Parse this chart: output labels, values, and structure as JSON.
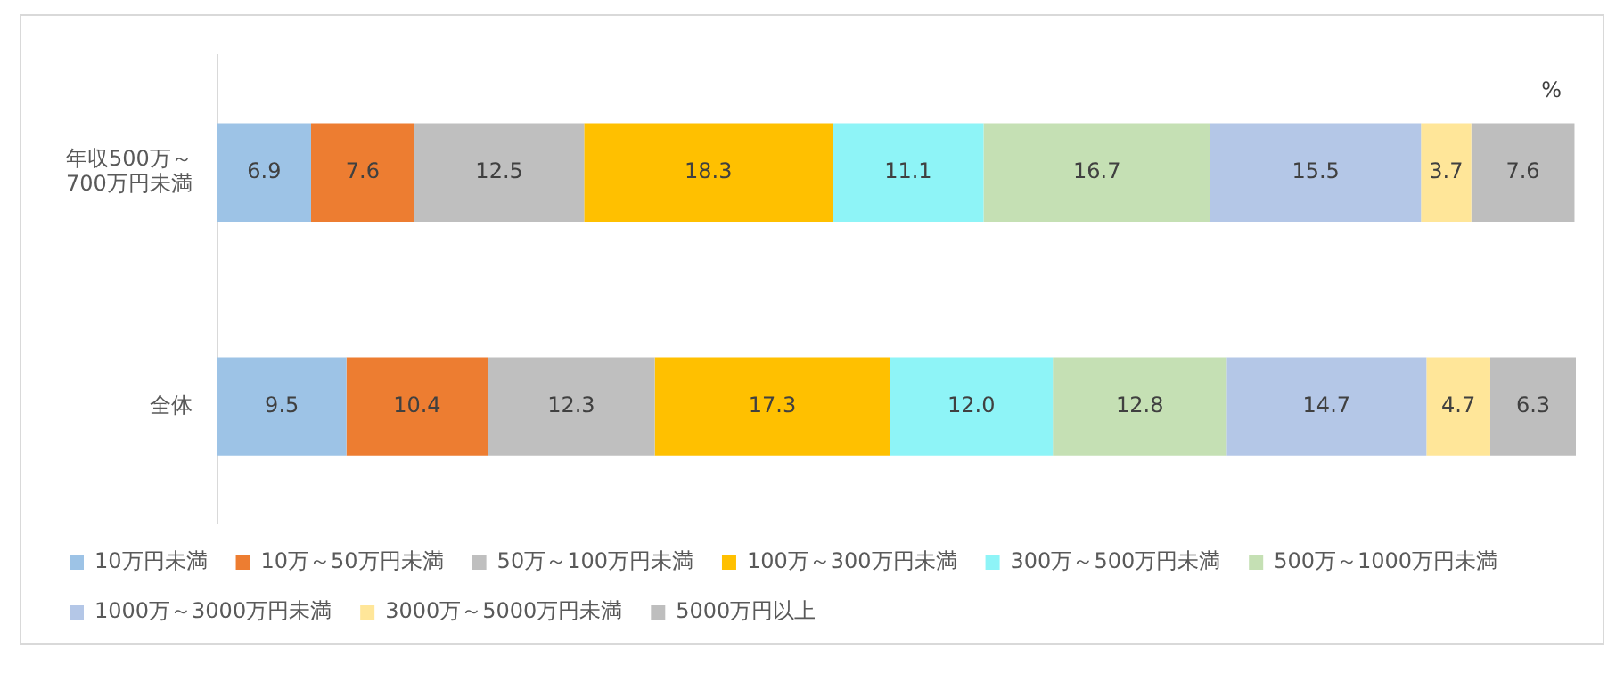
{
  "chart_data": {
    "type": "bar",
    "orientation": "horizontal",
    "stacked": true,
    "categories": [
      "年収500万～700万円未満",
      "全体"
    ],
    "xlim": [
      0,
      100
    ],
    "tick_labels": "y",
    "grid": false,
    "legend": "bottom",
    "annotations": [
      "%"
    ],
    "series": [
      {
        "name": "10万円未満",
        "color": "#9dc3e6",
        "values": [
          6.9,
          9.5
        ],
        "value_labels": [
          "6.9",
          "9.5"
        ]
      },
      {
        "name": "10万～50万円未満",
        "color": "#ed7d31",
        "values": [
          7.6,
          10.4
        ],
        "value_labels": [
          "7.6",
          "10.4"
        ]
      },
      {
        "name": "50万～100万円未満",
        "color": "#bfbfbf",
        "values": [
          12.5,
          12.3
        ],
        "value_labels": [
          "12.5",
          "12.3"
        ]
      },
      {
        "name": "100万～300万円未満",
        "color": "#ffc000",
        "values": [
          18.3,
          17.3
        ],
        "value_labels": [
          "18.3",
          "17.3"
        ]
      },
      {
        "name": "300万～500万円未満",
        "color": "#8ef4f7",
        "values": [
          11.1,
          12.0
        ],
        "value_labels": [
          "11.1",
          "12.0"
        ]
      },
      {
        "name": "500万～1000万円未満",
        "color": "#c5e0b4",
        "values": [
          16.7,
          12.8
        ],
        "value_labels": [
          "16.7",
          "12.8"
        ]
      },
      {
        "name": "1000万～3000万円未満",
        "color": "#b4c7e7",
        "values": [
          15.5,
          14.7
        ],
        "value_labels": [
          "15.5",
          "14.7"
        ]
      },
      {
        "name": "3000万～5000万円未満",
        "color": "#ffe699",
        "values": [
          3.7,
          4.7
        ],
        "value_labels": [
          "3.7",
          "4.7"
        ]
      },
      {
        "name": "5000万円以上",
        "color": "#bebebe",
        "values": [
          7.6,
          6.3
        ],
        "value_labels": [
          "7.6",
          "6.3"
        ]
      }
    ]
  }
}
